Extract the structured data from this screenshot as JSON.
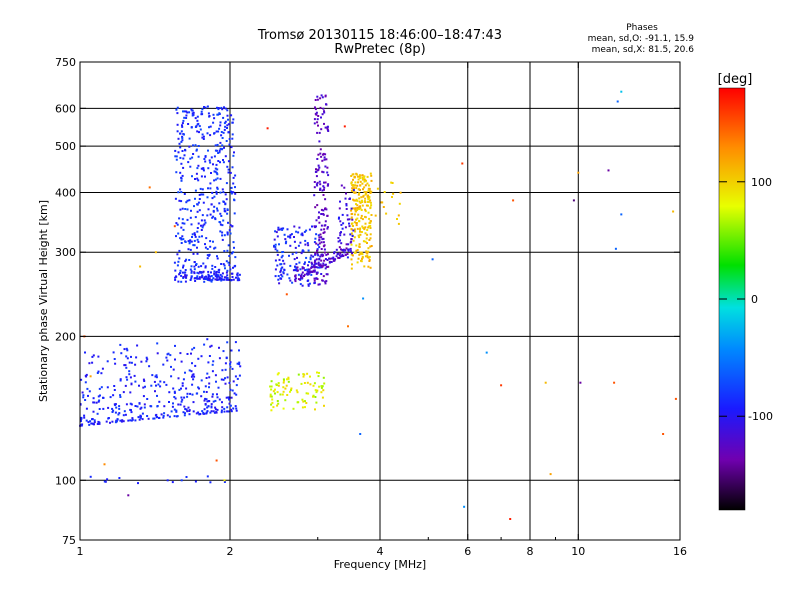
{
  "header": {
    "title_line1": "Tromsø 20130115 18:46:00–18:47:43",
    "title_line2": "RwPretec (8p)",
    "stats_title": "Phases",
    "stats_o": "mean, sd,O: -91.1, 15.9",
    "stats_x": "mean, sd,X:  81.5, 20.6"
  },
  "colorbar": {
    "unit_label": "[deg]",
    "ticks": [
      {
        "label": "100",
        "value": 100
      },
      {
        "label": "0",
        "value": 0
      },
      {
        "label": "-100",
        "value": -100
      }
    ],
    "range": [
      -180,
      180
    ],
    "colormap": "rainbow: black → purple → blue → cyan → green → yellow → orange → red"
  },
  "chart_data": {
    "type": "scatter",
    "title": "Tromsø 20130115 18:46:00–18:47:43",
    "subtitle": "RwPretec (8p)",
    "xlabel": "Frequency [MHz]",
    "ylabel": "Stationary phase Virtual Height [km]",
    "xscale": "log",
    "yscale": "log",
    "xlim": [
      1,
      16
    ],
    "ylim": [
      75,
      750
    ],
    "xticks": [
      {
        "value": 1,
        "label": "1"
      },
      {
        "value": 2,
        "label": "2"
      },
      {
        "value": 4,
        "label": "4"
      },
      {
        "value": 6,
        "label": "6"
      },
      {
        "value": 8,
        "label": "8"
      },
      {
        "value": 10,
        "label": "10"
      },
      {
        "value": 16,
        "label": "16"
      }
    ],
    "xminor": [
      3,
      5,
      7,
      9
    ],
    "yticks": [
      {
        "value": 75,
        "label": "75"
      },
      {
        "value": 100,
        "label": "100"
      },
      {
        "value": 200,
        "label": "200"
      },
      {
        "value": 300,
        "label": "300"
      },
      {
        "value": 400,
        "label": "400"
      },
      {
        "value": 500,
        "label": "500"
      },
      {
        "value": 600,
        "label": "600"
      },
      {
        "value": 750,
        "label": "750"
      }
    ],
    "xgrid": [
      2,
      4,
      6,
      8,
      10
    ],
    "ygrid": [
      100,
      200,
      300,
      400,
      500,
      600
    ],
    "grid": true,
    "color_by": "phase [deg]",
    "clusters": [
      {
        "kind": "band",
        "f": [
          1.0,
          2.1
        ],
        "h0": 130,
        "h1": 140,
        "spread": [
          0,
          60
        ],
        "phase": [
          -105,
          -75
        ],
        "n": 420
      },
      {
        "kind": "column",
        "f": [
          1.55,
          2.05
        ],
        "h": [
          260,
          610
        ],
        "bias": 0.55,
        "phase": [
          -100,
          -70
        ],
        "n": 480
      },
      {
        "kind": "band",
        "f": [
          1.55,
          2.1
        ],
        "h0": 265,
        "h1": 262,
        "spread": [
          0,
          10
        ],
        "phase": [
          -110,
          -80
        ],
        "n": 90
      },
      {
        "kind": "column",
        "f": [
          2.45,
          3.05
        ],
        "h": [
          255,
          340
        ],
        "bias": 0.5,
        "phase": [
          -115,
          -70
        ],
        "n": 160
      },
      {
        "kind": "column",
        "f": [
          2.95,
          3.15
        ],
        "h": [
          255,
          640
        ],
        "bias": 0.5,
        "phase": [
          -140,
          -110
        ],
        "n": 170
      },
      {
        "kind": "band",
        "f": [
          2.7,
          3.5
        ],
        "h0": 260,
        "h1": 300,
        "spread": [
          0,
          18
        ],
        "phase": [
          -140,
          -105
        ],
        "n": 90
      },
      {
        "kind": "column",
        "f": [
          3.5,
          3.85
        ],
        "h": [
          275,
          440
        ],
        "bias": 0.35,
        "phase": [
          90,
          120
        ],
        "n": 230
      },
      {
        "kind": "column",
        "f": [
          3.3,
          3.55
        ],
        "h": [
          290,
          420
        ],
        "bias": 0.5,
        "phase": [
          -130,
          -95
        ],
        "n": 50
      },
      {
        "kind": "column",
        "f": [
          2.4,
          3.1
        ],
        "h": [
          140,
          170
        ],
        "bias": 0.5,
        "phase": [
          60,
          100
        ],
        "n": 90
      },
      {
        "kind": "column",
        "f": [
          3.9,
          4.4
        ],
        "h": [
          340,
          420
        ],
        "bias": 0.5,
        "phase": [
          95,
          115
        ],
        "n": 16
      },
      {
        "kind": "column",
        "f": [
          1.05,
          2.0
        ],
        "h": [
          98,
          102
        ],
        "bias": 0.5,
        "phase": [
          -100,
          -80
        ],
        "n": 12
      }
    ],
    "points": [
      {
        "x": 1.02,
        "y": 200,
        "phase": 150
      },
      {
        "x": 1.05,
        "y": 165,
        "phase": 120
      },
      {
        "x": 1.12,
        "y": 108,
        "phase": 130
      },
      {
        "x": 1.25,
        "y": 93,
        "phase": -140
      },
      {
        "x": 1.38,
        "y": 410,
        "phase": 140
      },
      {
        "x": 1.55,
        "y": 340,
        "phase": 150
      },
      {
        "x": 1.42,
        "y": 300,
        "phase": 110
      },
      {
        "x": 1.32,
        "y": 280,
        "phase": 110
      },
      {
        "x": 2.38,
        "y": 545,
        "phase": 170
      },
      {
        "x": 1.88,
        "y": 110,
        "phase": 150
      },
      {
        "x": 1.95,
        "y": 100,
        "phase": 90
      },
      {
        "x": 2.6,
        "y": 245,
        "phase": 150
      },
      {
        "x": 3.4,
        "y": 550,
        "phase": 170
      },
      {
        "x": 3.45,
        "y": 210,
        "phase": 140
      },
      {
        "x": 3.7,
        "y": 240,
        "phase": -40
      },
      {
        "x": 3.65,
        "y": 125,
        "phase": -60
      },
      {
        "x": 5.1,
        "y": 290,
        "phase": -60
      },
      {
        "x": 5.85,
        "y": 460,
        "phase": 160
      },
      {
        "x": 5.9,
        "y": 88,
        "phase": -40
      },
      {
        "x": 6.55,
        "y": 185,
        "phase": -40
      },
      {
        "x": 7.0,
        "y": 158,
        "phase": 160
      },
      {
        "x": 7.3,
        "y": 83,
        "phase": 170
      },
      {
        "x": 7.4,
        "y": 385,
        "phase": 150
      },
      {
        "x": 8.6,
        "y": 160,
        "phase": 110
      },
      {
        "x": 8.8,
        "y": 103,
        "phase": 120
      },
      {
        "x": 9.8,
        "y": 385,
        "phase": -150
      },
      {
        "x": 10.0,
        "y": 440,
        "phase": 120
      },
      {
        "x": 10.1,
        "y": 160,
        "phase": -140
      },
      {
        "x": 11.5,
        "y": 445,
        "phase": -140
      },
      {
        "x": 11.8,
        "y": 160,
        "phase": 150
      },
      {
        "x": 12.0,
        "y": 620,
        "phase": -60
      },
      {
        "x": 12.2,
        "y": 650,
        "phase": -20
      },
      {
        "x": 12.2,
        "y": 360,
        "phase": -60
      },
      {
        "x": 11.9,
        "y": 305,
        "phase": -60
      },
      {
        "x": 14.8,
        "y": 125,
        "phase": 150
      },
      {
        "x": 15.5,
        "y": 365,
        "phase": 110
      },
      {
        "x": 15.7,
        "y": 148,
        "phase": 150
      },
      {
        "x": 1.6,
        "y": 100,
        "phase": -80
      },
      {
        "x": 1.5,
        "y": 100,
        "phase": -90
      }
    ]
  }
}
